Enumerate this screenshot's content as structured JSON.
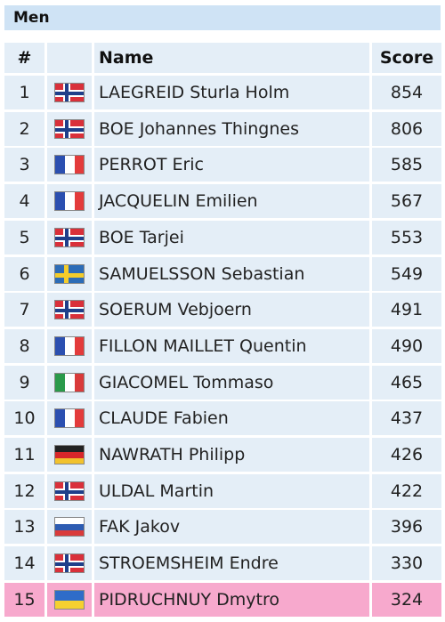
{
  "section": "Men",
  "table": {
    "header": [
      "#",
      "Name",
      "Score"
    ],
    "rows": [
      [
        1,
        "LAEGREID Sturla Holm",
        854
      ],
      [
        2,
        "BOE Johannes Thingnes",
        806
      ],
      [
        3,
        "PERROT Eric",
        585
      ],
      [
        4,
        "JACQUELIN Emilien",
        567
      ],
      [
        5,
        "BOE Tarjei",
        553
      ],
      [
        6,
        "SAMUELSSON Sebastian",
        549
      ],
      [
        7,
        "SOERUM Vebjoern",
        491
      ],
      [
        8,
        "FILLON MAILLET Quentin",
        490
      ],
      [
        9,
        "GIACOMEL Tommaso",
        465
      ],
      [
        10,
        "CLAUDE Fabien",
        437
      ],
      [
        11,
        "NAWRATH Philipp",
        426
      ],
      [
        12,
        "ULDAL Martin",
        422
      ],
      [
        13,
        "FAK Jakov",
        396
      ],
      [
        14,
        "STROEMSHEIM Endre",
        330
      ],
      [
        15,
        "PIDRUCHNUY Dmytro",
        324
      ]
    ]
  }
}
